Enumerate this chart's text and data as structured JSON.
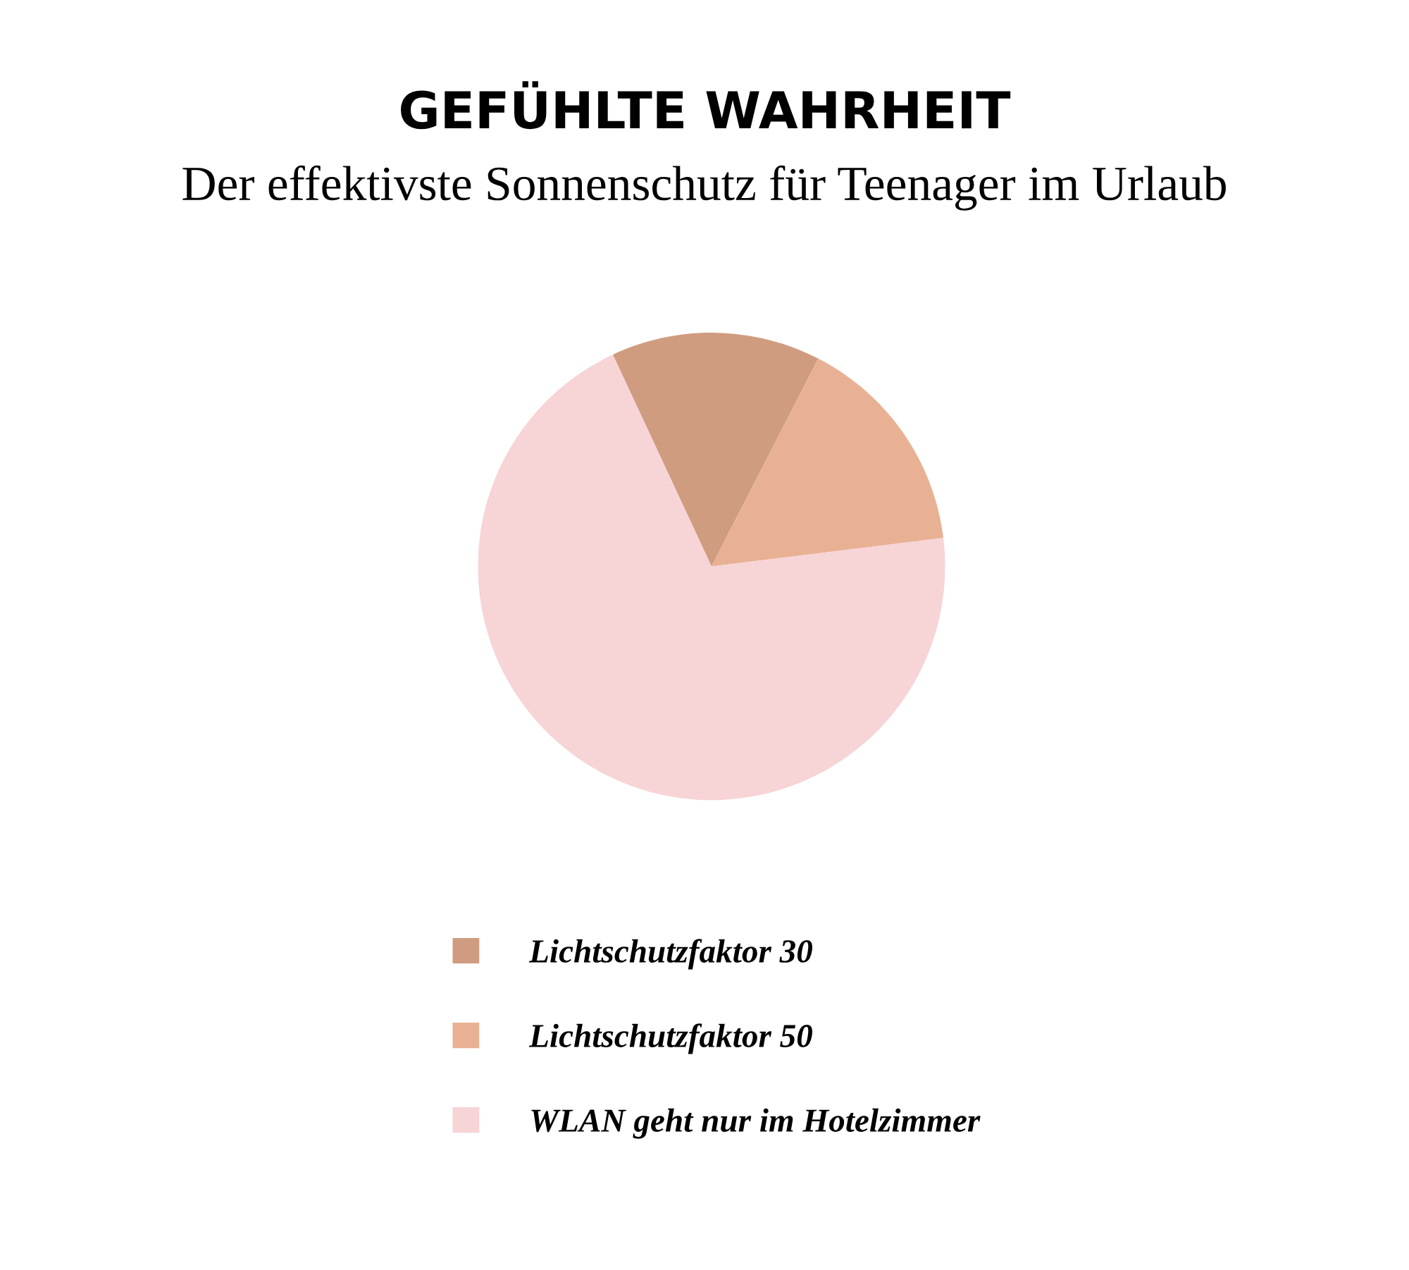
{
  "chart_data": {
    "type": "pie",
    "title": "GEFÜHLTE WAHRHEIT",
    "subtitle": "Der effektivste Sonnenschutz für Teenager im Urlaub",
    "categories": [
      "Lichtschutzfaktor 30",
      "Lichtschutzfaktor 50",
      "WLAN geht nur im Hotelzimmer"
    ],
    "values": [
      14.5,
      15.5,
      70
    ],
    "colors": [
      "#d09c80",
      "#e9b194",
      "#f7d4d6"
    ],
    "legend": "bottom"
  }
}
